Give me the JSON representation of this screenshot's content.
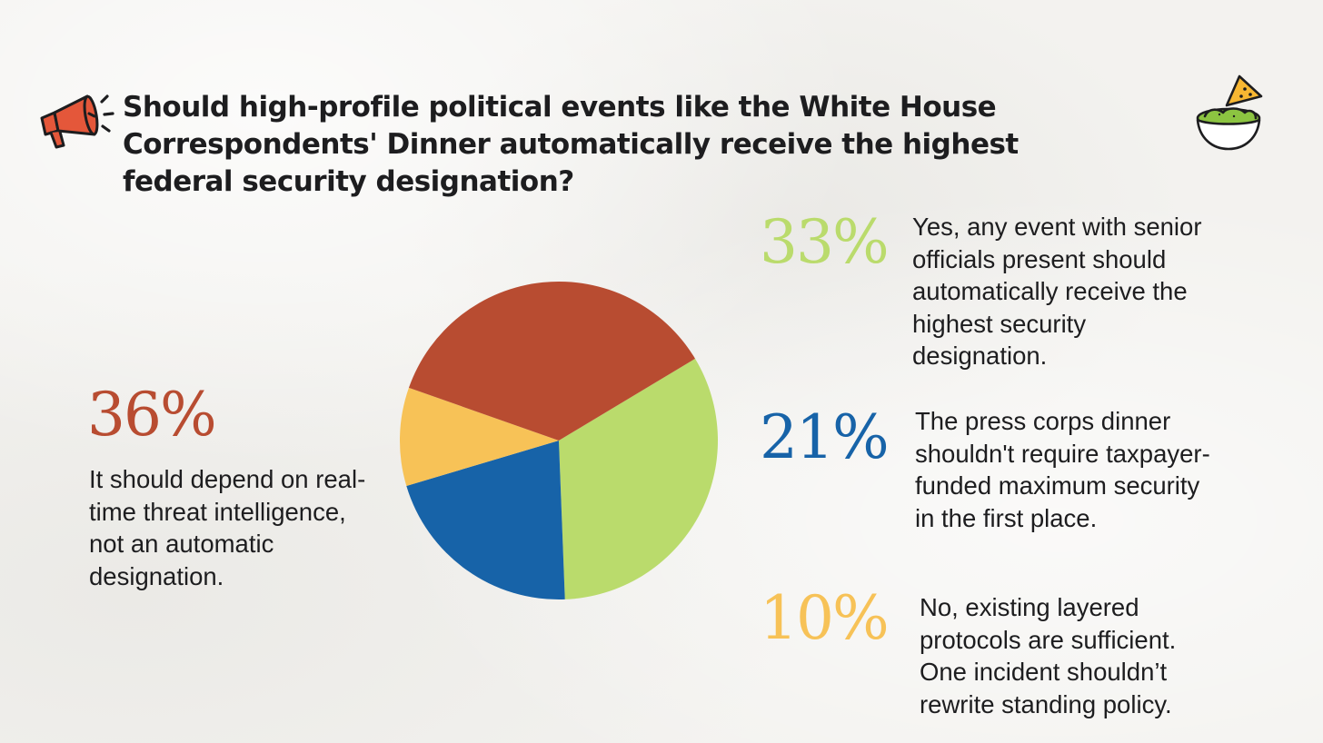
{
  "title": "Should high-profile political events like the White House Correspondents' Dinner automatically receive the highest federal security designation?",
  "icons": {
    "left": "megaphone-icon",
    "right": "chips-and-guacamole-bowl-icon"
  },
  "colors": {
    "green": "#badb6c",
    "blue": "#1763a8",
    "yellow": "#f7c257",
    "red": "#b84c31",
    "text": "#1d1d1f"
  },
  "answers": [
    {
      "pct": "33%",
      "text": "Yes, any event with senior officials present should automatically receive the highest security designation."
    },
    {
      "pct": "21%",
      "text": "The press corps dinner shouldn't require taxpayer-funded maximum security in the first place."
    },
    {
      "pct": "10%",
      "text": "No, existing layered protocols are sufficient. One incident shouldn’t rewrite standing policy."
    },
    {
      "pct": "36%",
      "text": "It should depend on real-time threat intelligence, not an automatic designation."
    }
  ],
  "chart_data": {
    "type": "pie",
    "title": "Should high-profile political events like the White House Correspondents' Dinner automatically receive the highest federal security designation?",
    "categories": [
      "Yes, automatic highest designation",
      "Shouldn't require taxpayer-funded maximum security",
      "Existing layered protocols are sufficient",
      "Depend on real-time threat intelligence"
    ],
    "values": [
      33,
      21,
      10,
      36
    ],
    "colors": [
      "#badb6c",
      "#1763a8",
      "#f7c257",
      "#b84c31"
    ],
    "start_angle_deg": 59,
    "direction": "clockwise"
  }
}
